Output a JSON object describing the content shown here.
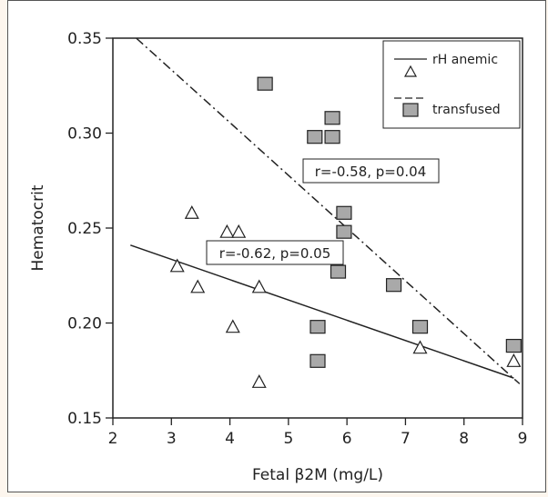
{
  "chart_data": {
    "type": "scatter",
    "xlabel": "Fetal β2M (mg/L)",
    "ylabel": "Hematocrit",
    "xlim": [
      2,
      9
    ],
    "ylim": [
      0.15,
      0.35
    ],
    "x_ticks": [
      "2",
      "3",
      "4",
      "5",
      "6",
      "7",
      "8",
      "9"
    ],
    "y_ticks": [
      "0.15",
      "0.20",
      "0.25",
      "0.30",
      "0.35"
    ],
    "grid": false,
    "legend_position": "top-right",
    "series": [
      {
        "name": "rH anemic",
        "marker": "triangle",
        "color": "#ffffff",
        "points": [
          [
            3.1,
            0.23
          ],
          [
            3.35,
            0.258
          ],
          [
            3.45,
            0.219
          ],
          [
            3.95,
            0.248
          ],
          [
            4.15,
            0.248
          ],
          [
            4.05,
            0.198
          ],
          [
            4.5,
            0.219
          ],
          [
            4.5,
            0.169
          ],
          [
            7.25,
            0.187
          ],
          [
            8.85,
            0.18
          ]
        ],
        "fit_line": {
          "style": "solid",
          "x": [
            2.3,
            8.85
          ],
          "y": [
            0.241,
            0.171
          ]
        }
      },
      {
        "name": "transfused",
        "marker": "square",
        "color": "#a9a9a9",
        "points": [
          [
            4.6,
            0.326
          ],
          [
            5.45,
            0.298
          ],
          [
            5.75,
            0.308
          ],
          [
            5.75,
            0.298
          ],
          [
            5.95,
            0.258
          ],
          [
            5.95,
            0.248
          ],
          [
            5.85,
            0.227
          ],
          [
            5.5,
            0.198
          ],
          [
            5.5,
            0.18
          ],
          [
            6.8,
            0.22
          ],
          [
            7.25,
            0.198
          ],
          [
            8.85,
            0.188
          ]
        ],
        "fit_line": {
          "style": "dash-dot",
          "x": [
            2.4,
            8.95
          ],
          "y": [
            0.35,
            0.168
          ]
        }
      }
    ],
    "annotations": [
      {
        "text": "r=-0.58, p=0.04",
        "x": 5.98,
        "y": 0.289
      },
      {
        "text": "r=-0.62, p=0.05",
        "x": 4.88,
        "y": 0.236
      }
    ]
  }
}
